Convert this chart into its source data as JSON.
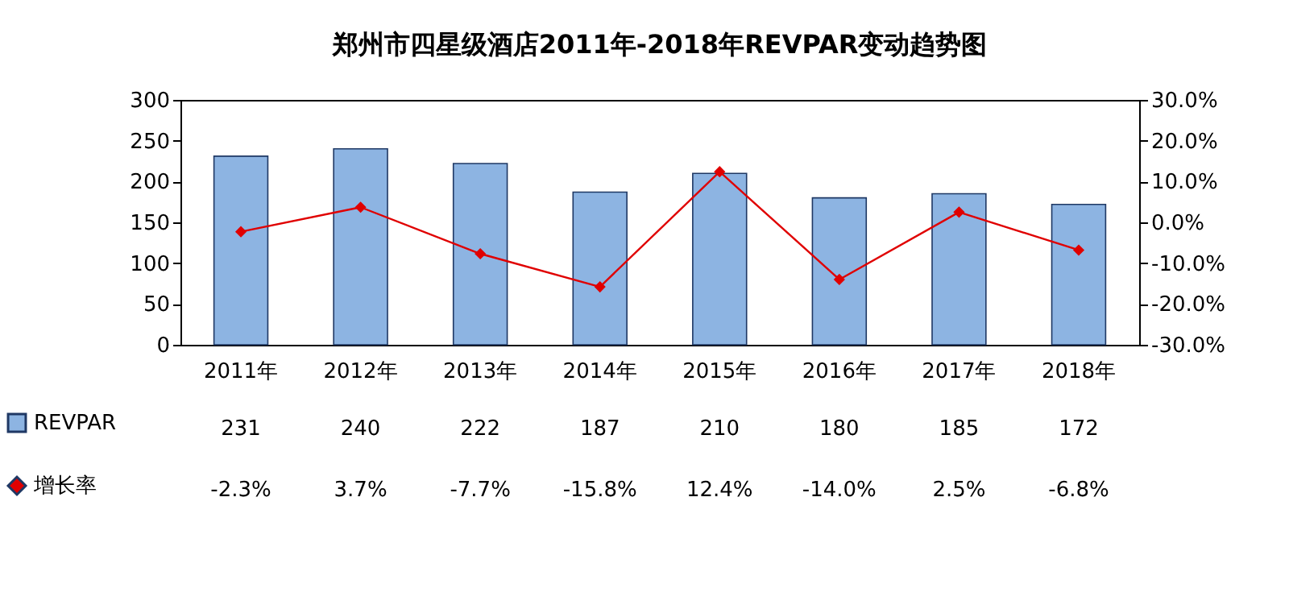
{
  "chart_data": {
    "type": "bar",
    "title": "郑州市四星级酒店2011年-2018年REVPAR变动趋势图",
    "categories": [
      "2011年",
      "2012年",
      "2013年",
      "2014年",
      "2015年",
      "2016年",
      "2017年",
      "2018年"
    ],
    "series": [
      {
        "name": "REVPAR",
        "color": "#8db4e2",
        "values": [
          231,
          240,
          222,
          187,
          210,
          180,
          185,
          172
        ],
        "value_labels": [
          "231",
          "240",
          "222",
          "187",
          "210",
          "180",
          "185",
          "172"
        ]
      },
      {
        "name": "增长率",
        "type": "line",
        "axis": "y2",
        "color": "#e00000",
        "marker": "diamond",
        "values": [
          -2.3,
          3.7,
          -7.7,
          -15.8,
          12.4,
          -14.0,
          2.5,
          -6.8
        ],
        "value_labels": [
          "-2.3%",
          "3.7%",
          "-7.7%",
          "-15.8%",
          "12.4%",
          "-14.0%",
          "2.5%",
          "-6.8%"
        ]
      }
    ],
    "ylim": [
      0,
      300
    ],
    "yticks": [
      0,
      50,
      100,
      150,
      200,
      250,
      300
    ],
    "y2lim": [
      -30,
      30
    ],
    "y2ticks": [
      {
        "value": -30,
        "label": "-30.0%"
      },
      {
        "value": -20,
        "label": "-20.0%"
      },
      {
        "value": -10,
        "label": "-10.0%"
      },
      {
        "value": 0,
        "label": "0.0%"
      },
      {
        "value": 10,
        "label": "10.0%"
      },
      {
        "value": 20,
        "label": "20.0%"
      },
      {
        "value": 30,
        "label": "30.0%"
      }
    ],
    "grid": false,
    "legend": "bottom left"
  }
}
